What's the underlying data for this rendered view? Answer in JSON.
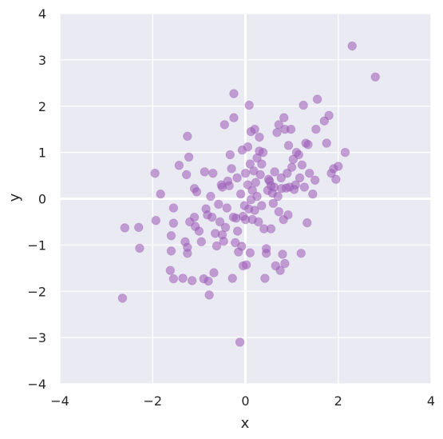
{
  "chart_data": {
    "type": "scatter",
    "title": "",
    "xlabel": "x",
    "ylabel": "y",
    "xlim": [
      -4,
      4
    ],
    "ylim": [
      -4,
      4
    ],
    "xticks": [
      -4,
      -2,
      0,
      2,
      4
    ],
    "yticks": [
      -4,
      -3,
      -2,
      -1,
      0,
      1,
      2,
      3,
      4
    ],
    "grid": true,
    "reference_lines": {
      "x": 0,
      "y": 0
    },
    "colors": {
      "background": "#eaeaf2",
      "grid": "#ffffff",
      "point": "#9b59b6"
    },
    "point_opacity": 0.55,
    "series": [
      {
        "points": [
          [
            -2.65,
            -2.15
          ],
          [
            -2.6,
            -0.63
          ],
          [
            -2.3,
            -0.62
          ],
          [
            -2.28,
            -1.07
          ],
          [
            -1.95,
            0.55
          ],
          [
            -1.93,
            -0.47
          ],
          [
            -1.83,
            0.1
          ],
          [
            -1.6,
            -0.8
          ],
          [
            -1.6,
            -1.13
          ],
          [
            -1.62,
            -1.55
          ],
          [
            -1.55,
            -1.73
          ],
          [
            -1.55,
            -0.53
          ],
          [
            -1.55,
            -0.2
          ],
          [
            -1.43,
            0.72
          ],
          [
            -1.35,
            -1.72
          ],
          [
            -1.3,
            -0.93
          ],
          [
            -1.25,
            -1.05
          ],
          [
            -1.25,
            -1.18
          ],
          [
            -1.2,
            -0.5
          ],
          [
            -1.27,
            0.52
          ],
          [
            -1.22,
            0.9
          ],
          [
            -1.25,
            1.35
          ],
          [
            -1.15,
            -1.77
          ],
          [
            -1.1,
            0.22
          ],
          [
            -1.1,
            -0.4
          ],
          [
            -1.08,
            -0.6
          ],
          [
            -1.05,
            0.15
          ],
          [
            -1.0,
            -0.7
          ],
          [
            -0.95,
            -0.93
          ],
          [
            -0.9,
            -1.73
          ],
          [
            -0.88,
            0.58
          ],
          [
            -0.85,
            -0.22
          ],
          [
            -0.82,
            -0.35
          ],
          [
            -0.8,
            -1.78
          ],
          [
            -0.78,
            -2.08
          ],
          [
            -0.75,
            0.05
          ],
          [
            -0.72,
            -0.4
          ],
          [
            -0.7,
            0.55
          ],
          [
            -0.68,
            -1.6
          ],
          [
            -0.65,
            -0.75
          ],
          [
            -0.62,
            -1.02
          ],
          [
            -0.58,
            -0.12
          ],
          [
            -0.55,
            -0.5
          ],
          [
            -0.52,
            0.3
          ],
          [
            -0.5,
            0.25
          ],
          [
            -0.5,
            -0.78
          ],
          [
            -0.47,
            -0.92
          ],
          [
            -0.45,
            1.6
          ],
          [
            -0.43,
            -0.62
          ],
          [
            -0.4,
            -0.2
          ],
          [
            -0.38,
            0.38
          ],
          [
            -0.35,
            0.28
          ],
          [
            -0.33,
            0.95
          ],
          [
            -0.3,
            0.65
          ],
          [
            -0.28,
            -1.72
          ],
          [
            -0.26,
            -0.4
          ],
          [
            -0.25,
            1.75
          ],
          [
            -0.25,
            2.27
          ],
          [
            -0.22,
            -0.95
          ],
          [
            -0.2,
            -0.42
          ],
          [
            -0.18,
            0.45
          ],
          [
            -0.17,
            -0.7
          ],
          [
            -0.15,
            -1.15
          ],
          [
            -0.12,
            -3.1
          ],
          [
            -0.1,
            0.1
          ],
          [
            -0.08,
            -1.03
          ],
          [
            -0.07,
            1.05
          ],
          [
            -0.05,
            -1.45
          ],
          [
            -0.05,
            -0.38
          ],
          [
            -0.02,
            -0.15
          ],
          [
            0.0,
            0.55
          ],
          [
            0.0,
            -0.45
          ],
          [
            0.02,
            -1.43
          ],
          [
            0.05,
            0.3
          ],
          [
            0.05,
            1.12
          ],
          [
            0.07,
            -0.22
          ],
          [
            0.08,
            2.02
          ],
          [
            0.1,
            -1.17
          ],
          [
            0.1,
            0.75
          ],
          [
            0.12,
            1.45
          ],
          [
            0.12,
            -0.02
          ],
          [
            0.15,
            -0.45
          ],
          [
            0.15,
            0.18
          ],
          [
            0.18,
            0.6
          ],
          [
            0.2,
            1.5
          ],
          [
            0.2,
            -0.25
          ],
          [
            0.22,
            0.35
          ],
          [
            0.25,
            0.88
          ],
          [
            0.25,
            0.05
          ],
          [
            0.28,
            -0.5
          ],
          [
            0.3,
            1.03
          ],
          [
            0.3,
            1.33
          ],
          [
            0.32,
            0.52
          ],
          [
            0.35,
            -0.15
          ],
          [
            0.35,
            0.75
          ],
          [
            0.38,
            1.0
          ],
          [
            0.4,
            -0.65
          ],
          [
            0.42,
            -1.72
          ],
          [
            0.45,
            -1.08
          ],
          [
            0.45,
            -1.18
          ],
          [
            0.48,
            0.18
          ],
          [
            0.5,
            0.42
          ],
          [
            0.52,
            0.38
          ],
          [
            0.55,
            -0.65
          ],
          [
            0.55,
            0.28
          ],
          [
            0.58,
            0.12
          ],
          [
            0.6,
            -0.1
          ],
          [
            0.62,
            0.25
          ],
          [
            0.63,
            0.58
          ],
          [
            0.65,
            -1.45
          ],
          [
            0.68,
            1.43
          ],
          [
            0.7,
            0.05
          ],
          [
            0.72,
            -0.28
          ],
          [
            0.72,
            1.6
          ],
          [
            0.75,
            -1.55
          ],
          [
            0.77,
            0.45
          ],
          [
            0.78,
            0.22
          ],
          [
            0.8,
            -1.2
          ],
          [
            0.82,
            -0.45
          ],
          [
            0.83,
            1.75
          ],
          [
            0.85,
            -1.4
          ],
          [
            0.85,
            1.5
          ],
          [
            0.88,
            0.23
          ],
          [
            0.9,
            0.55
          ],
          [
            0.92,
            -0.35
          ],
          [
            0.93,
            1.15
          ],
          [
            0.95,
            0.25
          ],
          [
            0.98,
            1.5
          ],
          [
            1.0,
            0.68
          ],
          [
            1.03,
            0.85
          ],
          [
            1.05,
            0.2
          ],
          [
            1.08,
            0.3
          ],
          [
            1.1,
            1.0
          ],
          [
            1.15,
            0.95
          ],
          [
            1.17,
            0.45
          ],
          [
            1.2,
            -1.18
          ],
          [
            1.22,
            0.73
          ],
          [
            1.25,
            2.02
          ],
          [
            1.27,
            0.25
          ],
          [
            1.3,
            1.2
          ],
          [
            1.33,
            -0.52
          ],
          [
            1.35,
            1.17
          ],
          [
            1.38,
            0.55
          ],
          [
            1.45,
            0.1
          ],
          [
            1.5,
            0.4
          ],
          [
            1.52,
            1.5
          ],
          [
            1.55,
            2.15
          ],
          [
            1.7,
            1.68
          ],
          [
            1.75,
            1.2
          ],
          [
            1.8,
            1.8
          ],
          [
            1.85,
            0.55
          ],
          [
            1.9,
            0.65
          ],
          [
            1.95,
            0.42
          ],
          [
            2.0,
            0.7
          ],
          [
            2.15,
            1.0
          ],
          [
            2.3,
            3.3
          ],
          [
            2.8,
            2.63
          ]
        ]
      }
    ]
  }
}
